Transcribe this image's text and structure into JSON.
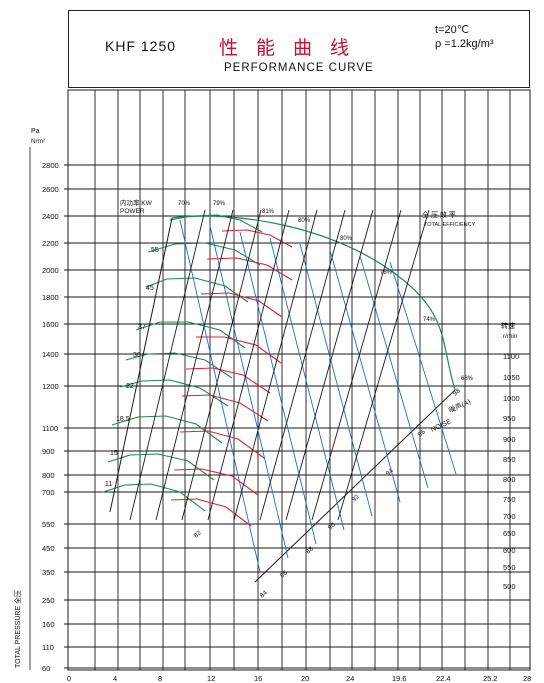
{
  "header": {
    "model": "KHF  1250",
    "title_cn": "性能曲线",
    "title_en": "PERFORMANCE  CURVE",
    "condition_temp": "t=20℃",
    "condition_density": "ρ =1.2kg/m³"
  },
  "chart_data": {
    "type": "line",
    "title": "KHF  1250  性能曲线  PERFORMANCE CURVE",
    "x_ticks": [
      "0",
      "4",
      "8",
      "12",
      "16",
      "20",
      "24",
      "19.6",
      "22.4",
      "25.2",
      "28"
    ],
    "y_unit_top": "Pa",
    "y_unit_bottom": "N/m²",
    "y_ticks": [
      "2800",
      "2600",
      "2400",
      "2200",
      "2000",
      "1800",
      "1600",
      "1400",
      "1200",
      "1100",
      "900",
      "800",
      "700",
      "550",
      "450",
      "350",
      "250",
      "160",
      "110",
      "60"
    ],
    "y_label": "TOTAL PRESSURE 全压",
    "speed_label_cn": "转速",
    "speed_label_en": "r/min",
    "speed_ticks": [
      "1100",
      "1050",
      "1000",
      "950",
      "900",
      "850",
      "800",
      "750",
      "700",
      "650",
      "600",
      "550",
      "500"
    ],
    "power_label_cn": "内功率 KW",
    "power_label_en": "POWER",
    "power_values": [
      "55",
      "45",
      "37",
      "30",
      "22",
      "18.5",
      "15",
      "11"
    ],
    "efficiency_label_cn": "全 压 效 率",
    "efficiency_label_en": "TOTAL EFFICIENCY",
    "efficiency_values": [
      "70%",
      "79%",
      "81%",
      "80%",
      "80%",
      "78%",
      "74%",
      "68%"
    ],
    "noise_label_cn": "噪声(A)",
    "noise_label_en": "NOISE",
    "noise_values": [
      "98",
      "96",
      "94",
      "92",
      "90",
      "88",
      "86",
      "84",
      "82"
    ],
    "colors": {
      "grid": "#1a1a1a",
      "pressure_curve": "#e02030",
      "efficiency_line": "#1a6fd0",
      "envelope": "#1e8a50",
      "power_line": "#111111"
    }
  }
}
